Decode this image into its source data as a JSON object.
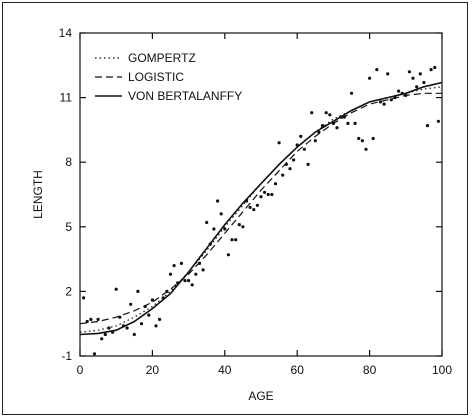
{
  "chart_data": {
    "type": "scatter",
    "title": "",
    "xlabel": "AGE",
    "ylabel": "LENGTH",
    "xlim": [
      0,
      100
    ],
    "ylim": [
      -1,
      14
    ],
    "xticks": [
      0,
      20,
      40,
      60,
      80,
      100
    ],
    "yticks": [
      -1,
      2,
      5,
      8,
      11,
      14
    ],
    "xtick_labels": [
      "0",
      "20",
      "40",
      "60",
      "80",
      "100"
    ],
    "ytick_labels": [
      "-1",
      "2",
      "5",
      "8",
      "11",
      "14"
    ],
    "grid": false,
    "legend_position": "top-left",
    "legend": [
      {
        "label": "GOMPERTZ",
        "style": "dotted"
      },
      {
        "label": "LOGISTIC",
        "style": "dashed"
      },
      {
        "label": "VON BERTALANFFY",
        "style": "solid"
      }
    ],
    "series": [
      {
        "name": "GOMPERTZ",
        "style": "dotted",
        "x": [
          0,
          5,
          10,
          15,
          20,
          25,
          30,
          35,
          40,
          45,
          50,
          55,
          60,
          65,
          70,
          75,
          80,
          85,
          90,
          95,
          100
        ],
        "y": [
          0.1,
          0.2,
          0.4,
          0.8,
          1.3,
          2.0,
          2.9,
          3.9,
          5.0,
          6.0,
          7.0,
          7.9,
          8.7,
          9.4,
          10.0,
          10.4,
          10.8,
          11.0,
          11.2,
          11.4,
          11.5
        ]
      },
      {
        "name": "LOGISTIC",
        "style": "dashed",
        "x": [
          0,
          5,
          10,
          15,
          20,
          25,
          30,
          35,
          40,
          45,
          50,
          55,
          60,
          65,
          70,
          75,
          80,
          85,
          90,
          95,
          100
        ],
        "y": [
          0.5,
          0.6,
          0.8,
          1.1,
          1.5,
          2.1,
          2.8,
          3.7,
          4.7,
          5.7,
          6.7,
          7.6,
          8.5,
          9.2,
          9.8,
          10.3,
          10.7,
          10.9,
          11.1,
          11.2,
          11.2
        ]
      },
      {
        "name": "VON BERTALANFFY",
        "style": "solid",
        "x": [
          0,
          5,
          10,
          15,
          20,
          25,
          30,
          35,
          40,
          45,
          50,
          55,
          60,
          65,
          70,
          75,
          80,
          85,
          90,
          95,
          100
        ],
        "y": [
          0.0,
          0.05,
          0.2,
          0.6,
          1.2,
          1.9,
          2.9,
          4.0,
          5.1,
          6.1,
          7.0,
          7.9,
          8.7,
          9.4,
          9.9,
          10.4,
          10.8,
          11.0,
          11.2,
          11.5,
          11.7
        ]
      }
    ],
    "points": {
      "x": [
        1,
        2,
        3,
        4,
        5,
        6,
        7,
        8,
        9,
        10,
        11,
        12,
        13,
        14,
        15,
        16,
        17,
        18,
        19,
        20,
        21,
        22,
        23,
        24,
        25,
        26,
        27,
        28,
        29,
        30,
        31,
        32,
        33,
        34,
        35,
        36,
        37,
        38,
        39,
        40,
        41,
        42,
        43,
        44,
        45,
        46,
        47,
        48,
        49,
        50,
        51,
        52,
        53,
        54,
        55,
        56,
        57,
        58,
        59,
        60,
        61,
        62,
        63,
        64,
        65,
        66,
        67,
        68,
        69,
        70,
        71,
        72,
        73,
        74,
        75,
        76,
        77,
        78,
        79,
        80,
        81,
        82,
        83,
        84,
        85,
        86,
        87,
        88,
        89,
        90,
        91,
        92,
        93,
        94,
        95,
        96,
        97,
        98,
        99
      ],
      "y": [
        1.7,
        0.6,
        0.7,
        -0.9,
        0.7,
        -0.2,
        0.0,
        0.3,
        0.1,
        2.1,
        0.8,
        0.4,
        0.3,
        1.4,
        0.0,
        2.0,
        0.5,
        1.3,
        0.9,
        1.6,
        0.4,
        0.7,
        1.7,
        2.0,
        2.8,
        3.2,
        2.4,
        3.3,
        2.5,
        2.5,
        2.3,
        2.8,
        3.3,
        3.0,
        5.2,
        4.2,
        4.9,
        6.2,
        5.6,
        4.9,
        3.7,
        4.4,
        4.4,
        5.1,
        5.0,
        6.2,
        5.9,
        5.8,
        6.0,
        6.4,
        6.6,
        6.5,
        6.5,
        7.0,
        8.9,
        7.4,
        7.9,
        7.7,
        8.1,
        8.8,
        9.2,
        8.6,
        7.9,
        10.3,
        9.0,
        9.4,
        9.7,
        10.3,
        10.2,
        9.8,
        9.6,
        10.1,
        10.1,
        9.8,
        11.2,
        9.8,
        9.1,
        9.0,
        8.6,
        11.9,
        9.1,
        12.3,
        10.8,
        10.7,
        12.1,
        10.9,
        11.0,
        11.3,
        11.2,
        11.1,
        12.2,
        11.9,
        11.5,
        12.1,
        11.7,
        9.7,
        12.3,
        12.4,
        9.9
      ]
    }
  }
}
